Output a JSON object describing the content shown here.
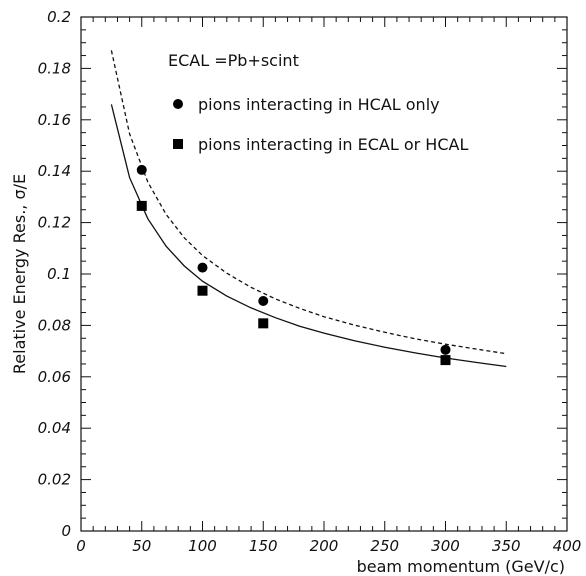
{
  "chart_data": {
    "type": "scatter",
    "xlabel": "beam momentum (GeV/c)",
    "ylabel": "Relative Energy Res., σ/E",
    "xlim": [
      0,
      400
    ],
    "ylim": [
      0,
      0.2
    ],
    "x_ticks": [
      "0",
      "50",
      "100",
      "150",
      "200",
      "250",
      "300",
      "350",
      "400"
    ],
    "y_ticks": [
      "0",
      "0.02",
      "0.04",
      "0.06",
      "0.08",
      "0.1",
      "0.12",
      "0.14",
      "0.16",
      "0.18",
      "0.2"
    ],
    "annotation": "ECAL =Pb+scint",
    "grid": false,
    "legend_position": "top-right",
    "series": [
      {
        "name": "pions interacting in HCAL only",
        "marker": "circle",
        "line_style": "dashed",
        "x": [
          50,
          100,
          150,
          300
        ],
        "y": [
          0.1405,
          0.1025,
          0.0895,
          0.0705
        ],
        "fit_x": [
          25,
          40,
          55,
          70,
          85,
          100,
          120,
          140,
          160,
          180,
          200,
          225,
          250,
          275,
          300,
          325,
          350
        ],
        "fit_y": [
          0.187,
          0.1545,
          0.1358,
          0.1232,
          0.1141,
          0.1072,
          0.1003,
          0.0948,
          0.0903,
          0.0866,
          0.0834,
          0.0801,
          0.0773,
          0.0748,
          0.0727,
          0.0708,
          0.069
        ]
      },
      {
        "name": "pions interacting in ECAL or HCAL",
        "marker": "square",
        "line_style": "solid",
        "x": [
          50,
          100,
          150,
          300
        ],
        "y": [
          0.1265,
          0.0935,
          0.0808,
          0.0665
        ],
        "fit_x": [
          25,
          40,
          55,
          70,
          85,
          100,
          120,
          140,
          160,
          180,
          200,
          225,
          250,
          275,
          300,
          325,
          350
        ],
        "fit_y": [
          0.166,
          0.1375,
          0.1215,
          0.1108,
          0.1031,
          0.0972,
          0.0914,
          0.0868,
          0.083,
          0.0797,
          0.077,
          0.074,
          0.0715,
          0.0693,
          0.0673,
          0.0656,
          0.064
        ]
      }
    ]
  }
}
